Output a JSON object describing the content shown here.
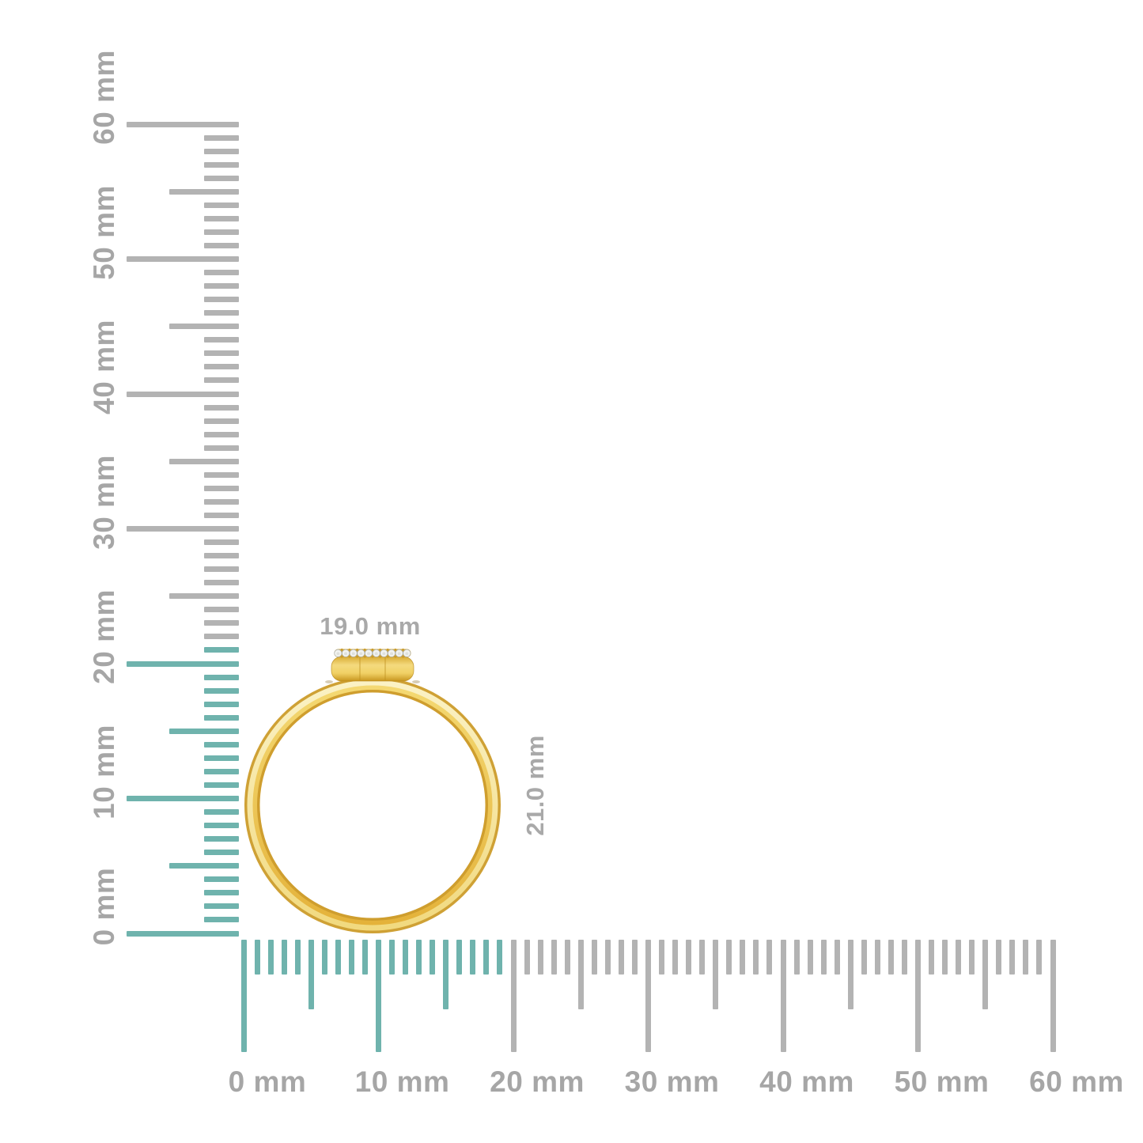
{
  "scene": {
    "description_width_mm": "19.0 mm",
    "description_height_mm": "21.0 mm"
  },
  "ring": {
    "width_label": "19.0 mm",
    "height_label": "21.0 mm",
    "diamond_count": 10
  },
  "rulers": {
    "unit": "mm",
    "vertical": {
      "min_mm": 0,
      "max_mm": 60,
      "label_step_mm": 10,
      "labels": [
        "0 mm",
        "10 mm",
        "20 mm",
        "30 mm",
        "40 mm",
        "50 mm",
        "60 mm"
      ],
      "highlighted_span_mm": 21
    },
    "horizontal": {
      "min_mm": 0,
      "max_mm": 60,
      "label_step_mm": 10,
      "labels": [
        "0 mm",
        "10 mm",
        "20 mm",
        "30 mm",
        "40 mm",
        "50 mm",
        "60 mm"
      ],
      "highlighted_span_mm": 19
    }
  },
  "colors": {
    "background": "#ffffff",
    "highlight_teal": "#6fb3ad",
    "tick_gray": "#b3b3b3",
    "ruler_label_gray": "#a6a6a6",
    "dimension_label_gray": "#a9a9a9",
    "gold_edge": "#cfa135",
    "gold_highlight_top": "#fbf2c6",
    "gold_highlight_bottom": "#f1d97e",
    "gold_mid_top": "#f4d973",
    "gold_mid_bottom": "#e4b23a",
    "gold_deep": "#cf9e2e",
    "gold_head_top": "#d9ab33",
    "gold_head_light": "#f4da7e",
    "gold_head_mid": "#f1d165",
    "gold_head_bottom": "#c8961f",
    "gold_strip": "#d9ad36",
    "diamond_white": "#f2f3f0",
    "diamond_outline": "#a9aaa5",
    "diamond_shade": "#dfe1dd",
    "prong_gold": "#c89a2c",
    "junction_shadow": "#7c5a0e"
  }
}
